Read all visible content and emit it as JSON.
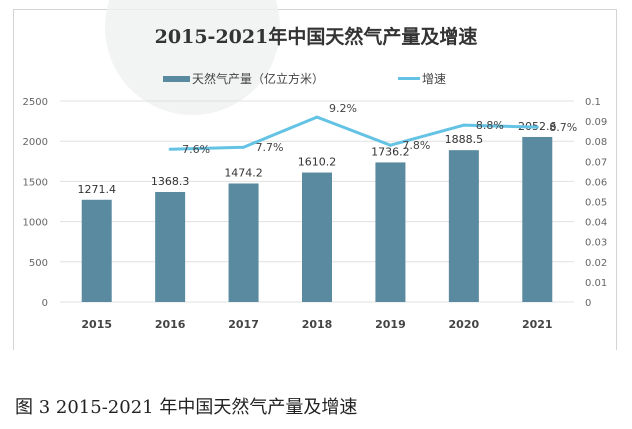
{
  "chart_data": {
    "type": "bar+line",
    "title": "2015-2021年中国天然气产量及增速",
    "categories": [
      "2015",
      "2016",
      "2017",
      "2018",
      "2019",
      "2020",
      "2021"
    ],
    "series": [
      {
        "name": "天然气产量（亿立方米）",
        "type": "bar",
        "axis": "left",
        "color": "#5a8a9f",
        "values": [
          1271.4,
          1368.3,
          1474.2,
          1610.2,
          1736.2,
          1888.5,
          2052.6
        ],
        "labels": [
          "1271.4",
          "1368.3",
          "1474.2",
          "1610.2",
          "1736.2",
          "1888.5",
          "2052.6"
        ]
      },
      {
        "name": "增速",
        "type": "line",
        "axis": "right",
        "color": "#64c3e4",
        "values": [
          null,
          0.076,
          0.077,
          0.092,
          0.078,
          0.088,
          0.087
        ],
        "labels": [
          "",
          "7.6%",
          "7.7%",
          "9.2%",
          "7.8%",
          "8.8%",
          "8.7%"
        ]
      }
    ],
    "y_left": {
      "min": 0,
      "max": 2500,
      "ticks": [
        "0",
        "500",
        "1000",
        "1500",
        "2000",
        "2500"
      ]
    },
    "y_right": {
      "min": 0,
      "max": 0.1,
      "ticks": [
        "0",
        "0.01",
        "0.02",
        "0.03",
        "0.04",
        "0.05",
        "0.06",
        "0.07",
        "0.08",
        "0.09",
        "0.1"
      ]
    },
    "grid": true,
    "legend": "top"
  },
  "caption": "图 3 2015-2021 年中国天然气产量及增速"
}
